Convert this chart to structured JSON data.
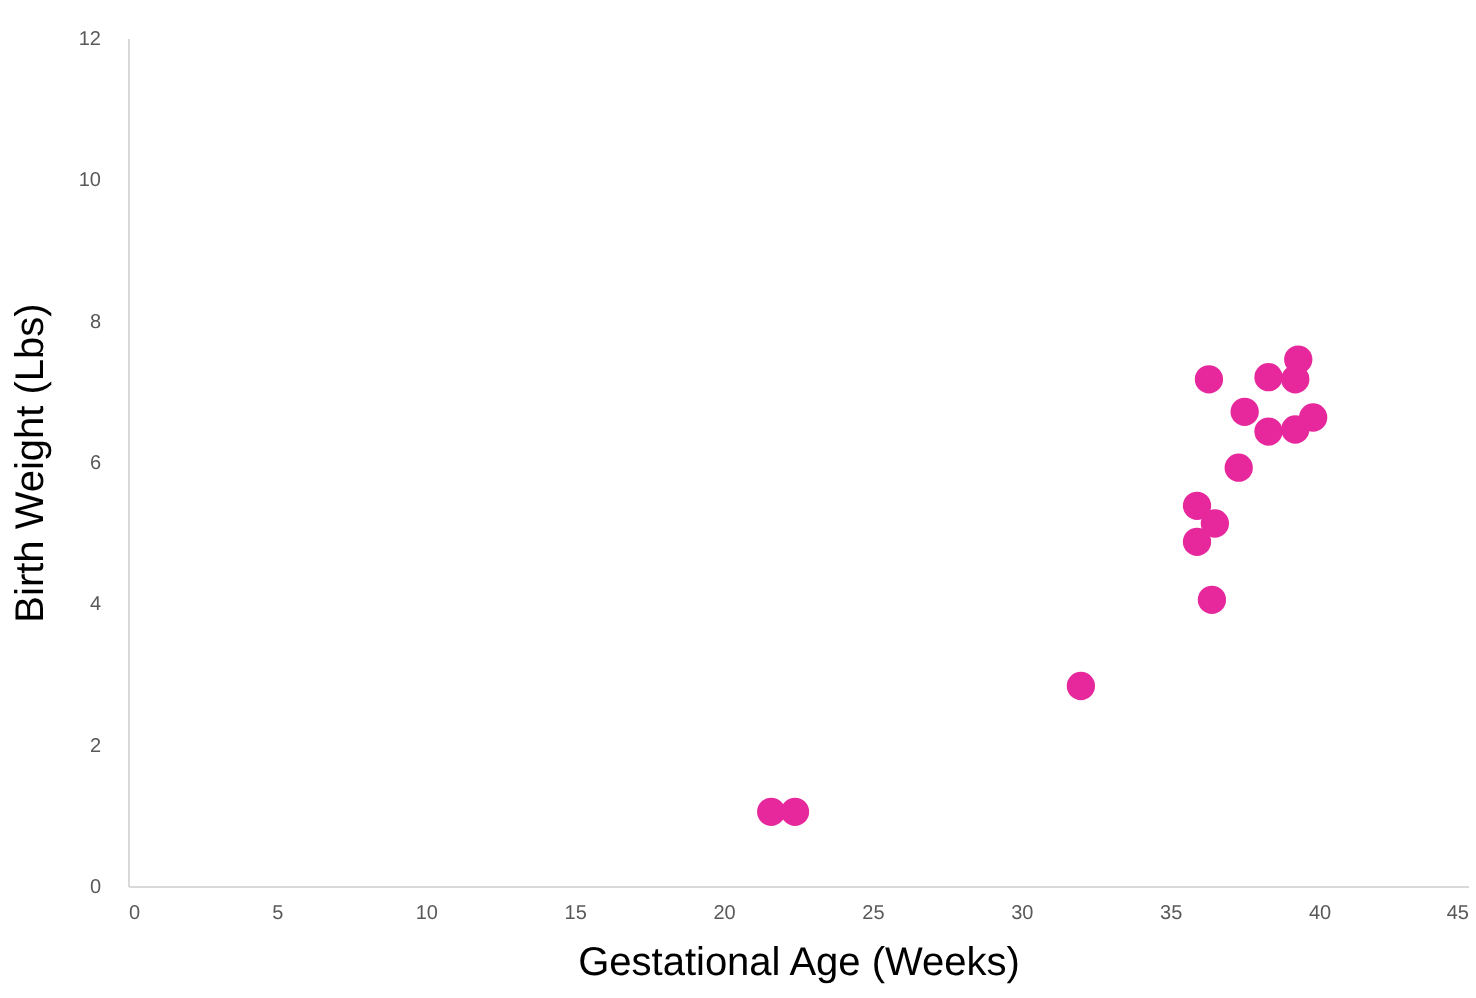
{
  "chart_data": {
    "type": "scatter",
    "xlabel": "Gestational Age (Weeks)",
    "ylabel": "Birth Weight (Lbs)",
    "x": [
      21.6,
      22.4,
      32.0,
      36.3,
      39.3,
      38.3,
      39.2,
      37.5,
      38.3,
      39.2,
      39.8,
      37.3,
      35.9,
      36.5,
      35.9,
      36.4
    ],
    "series": [
      {
        "color": "#e6289c",
        "values": [
          1.05,
          1.05,
          2.83,
          7.17,
          7.45,
          7.2,
          7.17,
          6.71,
          6.43,
          6.46,
          6.63,
          5.92,
          5.38,
          5.13,
          4.87,
          4.05
        ]
      }
    ],
    "xlim": [
      0,
      45
    ],
    "xticks": [
      0,
      5,
      10,
      15,
      20,
      25,
      30,
      35,
      40,
      45
    ],
    "ylim": [
      0,
      12
    ],
    "yticks": [
      0,
      2,
      4,
      6,
      8,
      10,
      12
    ],
    "marker": "circle",
    "grid": false
  }
}
